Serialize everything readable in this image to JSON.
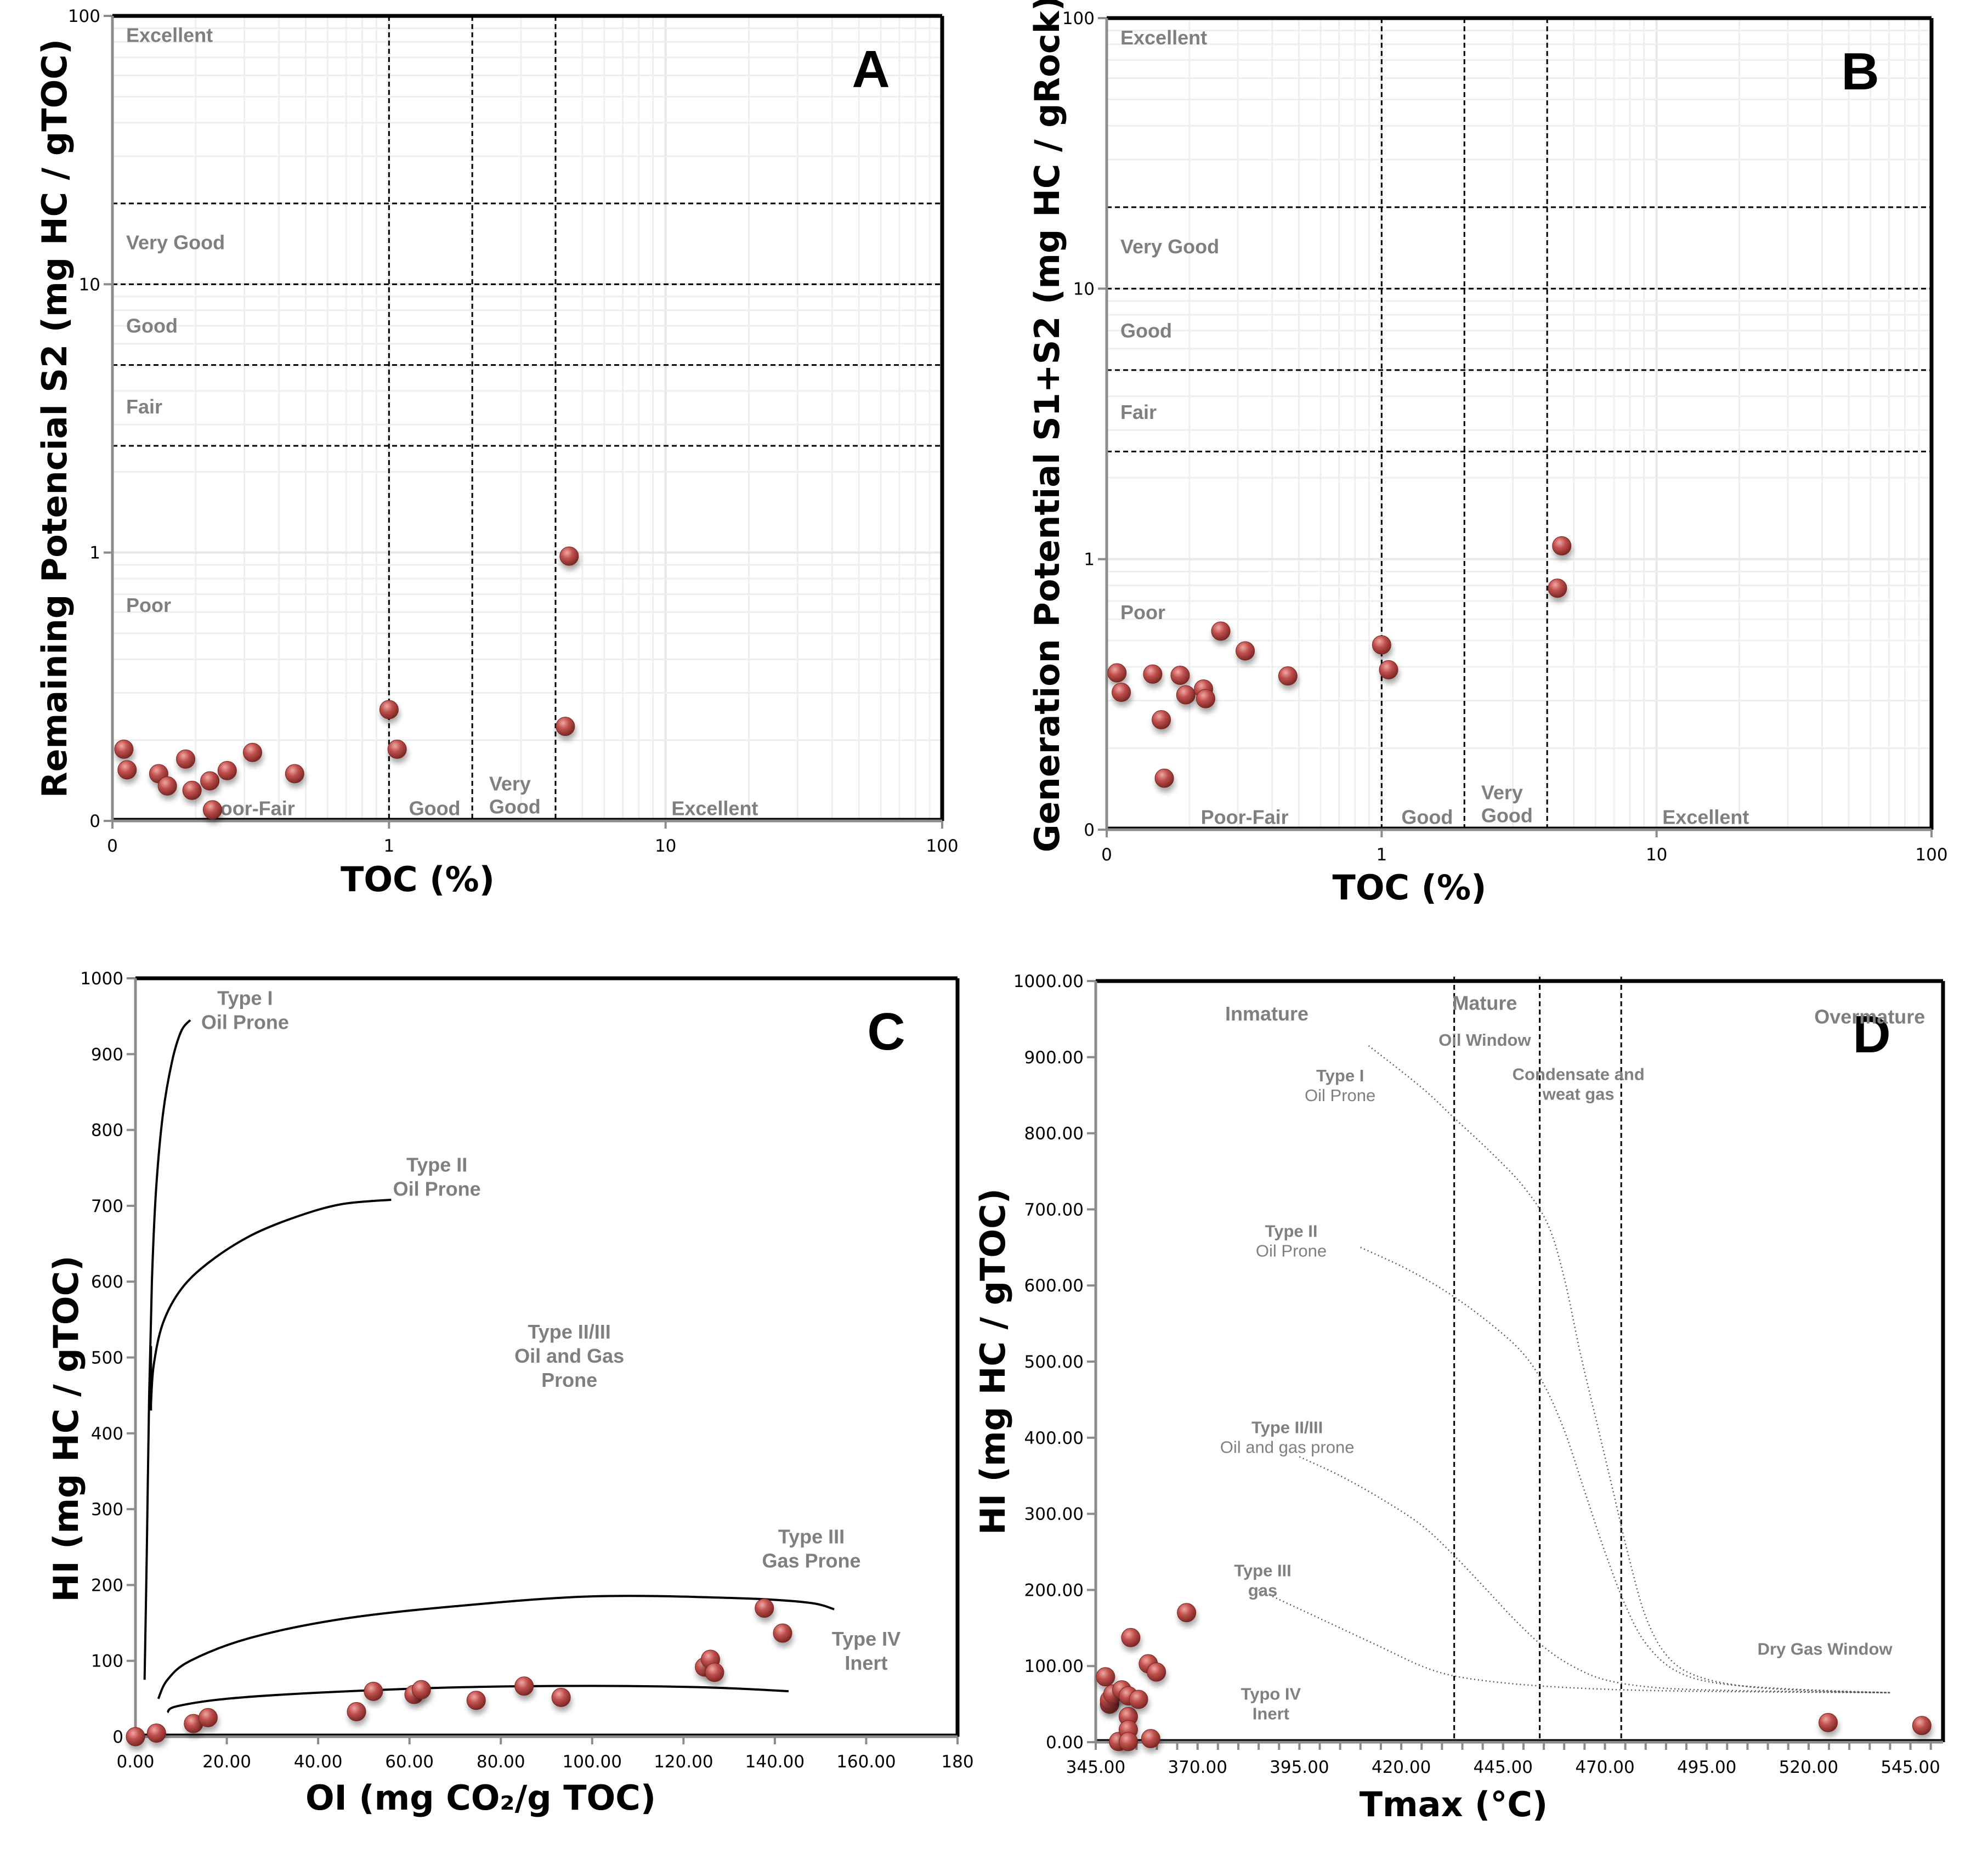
{
  "figure": {
    "marker_color": "#c0504d",
    "marker_highlight": "#e89290",
    "marker_shadow": "#7a2624",
    "region_label_color": "#7f7f7f"
  },
  "chart_data": [
    {
      "id": "A",
      "panel_label": "A",
      "type": "scatter",
      "xlabel": "TOC (%)",
      "ylabel": "Remaining Potencial S2 (mg HC / gTOC)",
      "xscale": "log",
      "yscale": "log",
      "xlim": [
        0.1,
        100
      ],
      "ylim": [
        0.1,
        100
      ],
      "x_ticks": [
        {
          "value": 0.1,
          "label": "0"
        },
        {
          "value": 1,
          "label": "1"
        },
        {
          "value": 10,
          "label": "10"
        },
        {
          "value": 100,
          "label": "100"
        }
      ],
      "y_ticks": [
        {
          "value": 0.1,
          "label": "0"
        },
        {
          "value": 1,
          "label": "1"
        },
        {
          "value": 10,
          "label": "10"
        },
        {
          "value": 100,
          "label": "100"
        }
      ],
      "grid": true,
      "vertical_dividers": [
        1,
        2,
        4
      ],
      "horizontal_dividers": [
        2.5,
        5,
        10,
        20
      ],
      "y_class_labels": [
        "Excellent",
        "Very Good",
        "Good",
        "Fair",
        "Poor"
      ],
      "x_class_labels": [
        "Poor-Fair",
        "Good",
        "Very Good",
        "Excellent"
      ],
      "points": [
        {
          "x": 0.11,
          "y": 0.185
        },
        {
          "x": 0.113,
          "y": 0.155
        },
        {
          "x": 0.147,
          "y": 0.15
        },
        {
          "x": 0.158,
          "y": 0.135
        },
        {
          "x": 0.184,
          "y": 0.17
        },
        {
          "x": 0.194,
          "y": 0.13
        },
        {
          "x": 0.225,
          "y": 0.141
        },
        {
          "x": 0.23,
          "y": 0.11
        },
        {
          "x": 0.26,
          "y": 0.154
        },
        {
          "x": 0.321,
          "y": 0.18
        },
        {
          "x": 0.456,
          "y": 0.15
        },
        {
          "x": 1.0,
          "y": 0.26
        },
        {
          "x": 1.07,
          "y": 0.185
        },
        {
          "x": 4.34,
          "y": 0.225
        },
        {
          "x": 4.48,
          "y": 0.97
        }
      ]
    },
    {
      "id": "B",
      "panel_label": "B",
      "type": "scatter",
      "xlabel": "TOC (%)",
      "ylabel": "Generation Potential S1+S2 (mg HC / gRock)",
      "xscale": "log",
      "yscale": "log",
      "xlim": [
        0.1,
        100
      ],
      "ylim": [
        0.1,
        100
      ],
      "x_ticks": [
        {
          "value": 0.1,
          "label": "0"
        },
        {
          "value": 1,
          "label": "1"
        },
        {
          "value": 10,
          "label": "10"
        },
        {
          "value": 100,
          "label": "100"
        }
      ],
      "y_ticks": [
        {
          "value": 0.1,
          "label": "0"
        },
        {
          "value": 1,
          "label": "1"
        },
        {
          "value": 10,
          "label": "10"
        },
        {
          "value": 100,
          "label": "100"
        }
      ],
      "grid": true,
      "vertical_dividers": [
        1,
        2,
        4
      ],
      "horizontal_dividers": [
        2.5,
        5,
        10,
        20
      ],
      "y_class_labels": [
        "Excellent",
        "Very Good",
        "Good",
        "Fair",
        "Poor"
      ],
      "x_class_labels": [
        "Poor-Fair",
        "Good",
        "Very Good",
        "Excellent"
      ],
      "points": [
        {
          "x": 0.109,
          "y": 0.38
        },
        {
          "x": 0.113,
          "y": 0.322
        },
        {
          "x": 0.147,
          "y": 0.376
        },
        {
          "x": 0.158,
          "y": 0.255
        },
        {
          "x": 0.162,
          "y": 0.155
        },
        {
          "x": 0.185,
          "y": 0.372
        },
        {
          "x": 0.194,
          "y": 0.315
        },
        {
          "x": 0.225,
          "y": 0.331
        },
        {
          "x": 0.229,
          "y": 0.305
        },
        {
          "x": 0.26,
          "y": 0.542
        },
        {
          "x": 0.319,
          "y": 0.458
        },
        {
          "x": 0.456,
          "y": 0.37
        },
        {
          "x": 1.0,
          "y": 0.482
        },
        {
          "x": 1.06,
          "y": 0.39
        },
        {
          "x": 4.36,
          "y": 0.781
        },
        {
          "x": 4.52,
          "y": 1.12
        }
      ]
    },
    {
      "id": "C",
      "panel_label": "C",
      "type": "scatter",
      "xlabel": "OI  (mg CO₂/g TOC)",
      "ylabel": "HI  (mg HC / gTOC)",
      "xscale": "linear",
      "yscale": "linear",
      "xlim": [
        0,
        180
      ],
      "ylim": [
        0,
        1000
      ],
      "x_ticks": [
        {
          "value": 0,
          "label": "0.00"
        },
        {
          "value": 20,
          "label": "20.00"
        },
        {
          "value": 40,
          "label": "40.00"
        },
        {
          "value": 60,
          "label": "60.00"
        },
        {
          "value": 80,
          "label": "80.00"
        },
        {
          "value": 100,
          "label": "100.00"
        },
        {
          "value": 120,
          "label": "120.00"
        },
        {
          "value": 140,
          "label": "140.00"
        },
        {
          "value": 160,
          "label": "160.00"
        },
        {
          "value": 180,
          "label": "180"
        }
      ],
      "y_ticks": [
        {
          "value": 0,
          "label": "0"
        },
        {
          "value": 100,
          "label": "100"
        },
        {
          "value": 200,
          "label": "200"
        },
        {
          "value": 300,
          "label": "300"
        },
        {
          "value": 400,
          "label": "400"
        },
        {
          "value": 500,
          "label": "500"
        },
        {
          "value": 600,
          "label": "600"
        },
        {
          "value": 700,
          "label": "700"
        },
        {
          "value": 800,
          "label": "800"
        },
        {
          "value": 900,
          "label": "900"
        },
        {
          "value": 1000,
          "label": "1000"
        }
      ],
      "grid": false,
      "annotations": [
        {
          "id": "type1",
          "lines": [
            "Type I",
            "Oil Prone"
          ]
        },
        {
          "id": "type2",
          "lines": [
            "Type II",
            "Oil Prone"
          ]
        },
        {
          "id": "type23",
          "lines": [
            "Type II/III",
            "Oil and Gas",
            "Prone"
          ]
        },
        {
          "id": "type3",
          "lines": [
            "Type III",
            "Gas Prone"
          ]
        },
        {
          "id": "type4",
          "lines": [
            "Type IV",
            "Inert"
          ]
        }
      ],
      "reference_curves": [
        {
          "name": "Type I",
          "points": [
            [
              2,
              75
            ],
            [
              2.5,
              250
            ],
            [
              3,
              450
            ],
            [
              3.6,
              600
            ],
            [
              4.5,
              720
            ],
            [
              6,
              820
            ],
            [
              8,
              890
            ],
            [
              10,
              930
            ],
            [
              12,
              945
            ]
          ]
        },
        {
          "name": "Type I lower",
          "points": [
            [
              3.4,
              515
            ],
            [
              3.4,
              430
            ]
          ]
        },
        {
          "name": "Type II",
          "points": [
            [
              3.4,
              440
            ],
            [
              4,
              490
            ],
            [
              6,
              545
            ],
            [
              10,
              590
            ],
            [
              16,
              625
            ],
            [
              25,
              660
            ],
            [
              35,
              685
            ],
            [
              45,
              702
            ],
            [
              56,
              708
            ]
          ]
        },
        {
          "name": "Type III",
          "points": [
            [
              5,
              50
            ],
            [
              7,
              75
            ],
            [
              12,
              100
            ],
            [
              25,
              130
            ],
            [
              45,
              155
            ],
            [
              70,
              172
            ],
            [
              100,
              185
            ],
            [
              130,
              183
            ],
            [
              147,
              177
            ],
            [
              153,
              168
            ]
          ]
        },
        {
          "name": "Type IV",
          "points": [
            [
              7,
              32
            ],
            [
              9,
              40
            ],
            [
              20,
              50
            ],
            [
              40,
              58
            ],
            [
              70,
              65
            ],
            [
              100,
              67
            ],
            [
              125,
              65
            ],
            [
              143,
              60
            ]
          ]
        }
      ],
      "points": [
        {
          "x": 0,
          "y": 0
        },
        {
          "x": 4.6,
          "y": 4.7
        },
        {
          "x": 12.7,
          "y": 17.3
        },
        {
          "x": 15.9,
          "y": 25.1
        },
        {
          "x": 48.4,
          "y": 33
        },
        {
          "x": 52.1,
          "y": 59.7
        },
        {
          "x": 61.0,
          "y": 55.7
        },
        {
          "x": 62.6,
          "y": 62
        },
        {
          "x": 74.6,
          "y": 47.9
        },
        {
          "x": 85.1,
          "y": 66.7
        },
        {
          "x": 93.2,
          "y": 51.8
        },
        {
          "x": 124.6,
          "y": 91.8
        },
        {
          "x": 125.9,
          "y": 102
        },
        {
          "x": 126.8,
          "y": 84.8
        },
        {
          "x": 137.7,
          "y": 169.5
        },
        {
          "x": 141.7,
          "y": 136.6
        }
      ]
    },
    {
      "id": "D",
      "panel_label": "D",
      "type": "scatter",
      "xlabel": "Tmax (°C)",
      "ylabel": "HI (mg HC / gTOC)",
      "xscale": "linear",
      "yscale": "linear",
      "xlim": [
        345,
        553
      ],
      "ylim": [
        0,
        1000
      ],
      "x_ticks": [
        {
          "value": 345,
          "label": "345.00"
        },
        {
          "value": 370,
          "label": "370.00"
        },
        {
          "value": 395,
          "label": "395.00"
        },
        {
          "value": 420,
          "label": "420.00"
        },
        {
          "value": 445,
          "label": "445.00"
        },
        {
          "value": 470,
          "label": "470.00"
        },
        {
          "value": 495,
          "label": "495.00"
        },
        {
          "value": 520,
          "label": "520.00"
        },
        {
          "value": 545,
          "label": "545.00"
        }
      ],
      "x_minor_step": 5,
      "y_ticks": [
        {
          "value": 0,
          "label": "0.00"
        },
        {
          "value": 100,
          "label": "100.00"
        },
        {
          "value": 200,
          "label": "200.00"
        },
        {
          "value": 300,
          "label": "300.00"
        },
        {
          "value": 400,
          "label": "400.00"
        },
        {
          "value": 500,
          "label": "500.00"
        },
        {
          "value": 600,
          "label": "600.00"
        },
        {
          "value": 700,
          "label": "700.00"
        },
        {
          "value": 800,
          "label": "800.00"
        },
        {
          "value": 900,
          "label": "900.00"
        },
        {
          "value": 1000,
          "label": "1000.00"
        }
      ],
      "grid": false,
      "vertical_dividers": [
        433,
        454,
        474
      ],
      "annotations": [
        {
          "id": "inmature",
          "lines": [
            "Inmature"
          ]
        },
        {
          "id": "mature",
          "lines": [
            "Mature"
          ]
        },
        {
          "id": "oil_window",
          "lines": [
            "Oil Window"
          ]
        },
        {
          "id": "condensate",
          "lines": [
            "Condensate and",
            "weat gas"
          ]
        },
        {
          "id": "overmature",
          "lines": [
            "Overmature"
          ]
        },
        {
          "id": "type1",
          "lines": [
            "Type I",
            "Oil Prone"
          ]
        },
        {
          "id": "type2",
          "lines": [
            "Type II",
            "Oil Prone"
          ]
        },
        {
          "id": "type23",
          "lines": [
            "Type II/III",
            "Oil and gas prone"
          ]
        },
        {
          "id": "type3",
          "lines": [
            "Type III",
            "gas"
          ]
        },
        {
          "id": "dry_gas",
          "lines": [
            "Dry Gas Window"
          ]
        },
        {
          "id": "type4",
          "lines": [
            "Typo IV",
            "Inert"
          ]
        }
      ],
      "reference_curves": [
        {
          "name": "Type I",
          "points": [
            [
              412,
              915
            ],
            [
              425,
              860
            ],
            [
              433,
              820
            ],
            [
              442,
              775
            ],
            [
              450,
              730
            ],
            [
              456,
              680
            ],
            [
              460,
              610
            ],
            [
              464,
              510
            ],
            [
              468,
              420
            ],
            [
              472,
              330
            ],
            [
              476,
              240
            ],
            [
              480,
              165
            ],
            [
              485,
              115
            ],
            [
              492,
              88
            ],
            [
              505,
              73
            ],
            [
              525,
              67
            ],
            [
              540,
              65
            ]
          ]
        },
        {
          "name": "Type II",
          "points": [
            [
              410,
              650
            ],
            [
              422,
              620
            ],
            [
              433,
              585
            ],
            [
              443,
              545
            ],
            [
              450,
              510
            ],
            [
              455,
              470
            ],
            [
              460,
              410
            ],
            [
              465,
              330
            ],
            [
              470,
              250
            ],
            [
              475,
              180
            ],
            [
              480,
              130
            ],
            [
              487,
              95
            ],
            [
              497,
              78
            ],
            [
              515,
              70
            ],
            [
              540,
              65
            ]
          ]
        },
        {
          "name": "Type II/III",
          "points": [
            [
              395,
              375
            ],
            [
              405,
              350
            ],
            [
              415,
              320
            ],
            [
              425,
              285
            ],
            [
              433,
              245
            ],
            [
              441,
              200
            ],
            [
              448,
              160
            ],
            [
              455,
              125
            ],
            [
              462,
              100
            ],
            [
              470,
              82
            ],
            [
              482,
              72
            ],
            [
              500,
              68
            ],
            [
              540,
              65
            ]
          ]
        },
        {
          "name": "Type III",
          "points": [
            [
              385,
              200
            ],
            [
              395,
              175
            ],
            [
              405,
              150
            ],
            [
              415,
              125
            ],
            [
              425,
              100
            ],
            [
              433,
              87
            ],
            [
              445,
              78
            ],
            [
              460,
              72
            ],
            [
              480,
              68
            ],
            [
              510,
              66
            ],
            [
              540,
              65
            ]
          ]
        }
      ],
      "points": [
        {
          "x": 347.4,
          "y": 85.9
        },
        {
          "x": 348.4,
          "y": 50
        },
        {
          "x": 348.4,
          "y": 55.4
        },
        {
          "x": 349.2,
          "y": 63.2
        },
        {
          "x": 350.6,
          "y": 0.8
        },
        {
          "x": 351.4,
          "y": 68.7
        },
        {
          "x": 353.0,
          "y": 60.9
        },
        {
          "x": 353.0,
          "y": 33.6
        },
        {
          "x": 353.0,
          "y": 16.4
        },
        {
          "x": 353.0,
          "y": 0.8
        },
        {
          "x": 353.6,
          "y": 137.4
        },
        {
          "x": 355.5,
          "y": 56.2
        },
        {
          "x": 357.9,
          "y": 103
        },
        {
          "x": 358.5,
          "y": 4.7
        },
        {
          "x": 359.9,
          "y": 92.1
        },
        {
          "x": 367.3,
          "y": 170.2
        },
        {
          "x": 524.8,
          "y": 25.8
        },
        {
          "x": 547.8,
          "y": 21.9
        }
      ]
    }
  ]
}
